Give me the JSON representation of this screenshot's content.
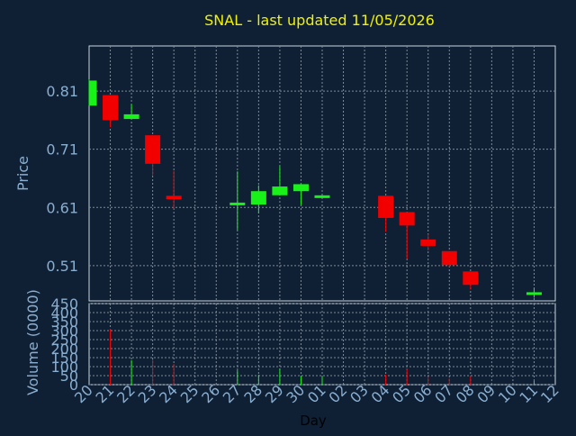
{
  "title": "SNAL - last updated 11/05/2026",
  "colors": {
    "background": "#0f2035",
    "frame": "#c8d4e0",
    "grid": "#7d8a98",
    "axis_text": "#8aaed0",
    "title": "#f2f200",
    "up": "#19f219",
    "down": "#f20000"
  },
  "chart_data": [
    {
      "type": "candlestick",
      "ylabel": "Price",
      "ylim": [
        0.4495,
        0.8875
      ],
      "yticks": [
        "0.51",
        "0.61",
        "0.71",
        "0.81"
      ],
      "grid": true,
      "candles": [
        {
          "x": "20",
          "open": 0.785,
          "high": 0.83,
          "low": 0.785,
          "close": 0.828
        },
        {
          "x": "21",
          "open": 0.803,
          "high": 0.803,
          "low": 0.748,
          "close": 0.76
        },
        {
          "x": "22",
          "open": 0.762,
          "high": 0.787,
          "low": 0.762,
          "close": 0.77
        },
        {
          "x": "23",
          "open": 0.734,
          "high": 0.734,
          "low": 0.665,
          "close": 0.685
        },
        {
          "x": "24",
          "open": 0.63,
          "high": 0.673,
          "low": 0.608,
          "close": 0.624
        },
        {
          "x": "27",
          "open": 0.614,
          "high": 0.672,
          "low": 0.571,
          "close": 0.618
        },
        {
          "x": "28",
          "open": 0.615,
          "high": 0.648,
          "low": 0.6,
          "close": 0.638
        },
        {
          "x": "29",
          "open": 0.631,
          "high": 0.681,
          "low": 0.631,
          "close": 0.646
        },
        {
          "x": "30",
          "open": 0.638,
          "high": 0.65,
          "low": 0.615,
          "close": 0.65
        },
        {
          "x": "01",
          "open": 0.627,
          "high": 0.63,
          "low": 0.627,
          "close": 0.63
        },
        {
          "x": "04",
          "open": 0.63,
          "high": 0.63,
          "low": 0.568,
          "close": 0.592
        },
        {
          "x": "05",
          "open": 0.602,
          "high": 0.602,
          "low": 0.522,
          "close": 0.579
        },
        {
          "x": "06",
          "open": 0.555,
          "high": 0.564,
          "low": 0.536,
          "close": 0.544
        },
        {
          "x": "07",
          "open": 0.535,
          "high": 0.535,
          "low": 0.508,
          "close": 0.511
        },
        {
          "x": "08",
          "open": 0.5,
          "high": 0.5,
          "low": 0.469,
          "close": 0.477
        },
        {
          "x": "11",
          "open": 0.461,
          "high": 0.471,
          "low": 0.455,
          "close": 0.463
        }
      ]
    },
    {
      "type": "bar",
      "ylabel": "Volume (0000)",
      "ylim": [
        0,
        450
      ],
      "yticks": [
        "0",
        "50",
        "100",
        "150",
        "200",
        "250",
        "300",
        "350",
        "400",
        "450"
      ],
      "grid": true,
      "bars": [
        {
          "x": "21",
          "value": 310,
          "direction": "down"
        },
        {
          "x": "22",
          "value": 135,
          "direction": "up"
        },
        {
          "x": "23",
          "value": 140,
          "direction": "down"
        },
        {
          "x": "24",
          "value": 115,
          "direction": "down"
        },
        {
          "x": "27",
          "value": 80,
          "direction": "up"
        },
        {
          "x": "28",
          "value": 55,
          "direction": "up"
        },
        {
          "x": "29",
          "value": 90,
          "direction": "up"
        },
        {
          "x": "30",
          "value": 50,
          "direction": "up"
        },
        {
          "x": "01",
          "value": 45,
          "direction": "up"
        },
        {
          "x": "04",
          "value": 55,
          "direction": "down"
        },
        {
          "x": "05",
          "value": 90,
          "direction": "down"
        },
        {
          "x": "06",
          "value": 45,
          "direction": "down"
        },
        {
          "x": "07",
          "value": 35,
          "direction": "down"
        },
        {
          "x": "08",
          "value": 50,
          "direction": "down"
        },
        {
          "x": "11",
          "value": 20,
          "direction": "up"
        }
      ]
    }
  ],
  "x_axis": {
    "label": "Day",
    "ticks": [
      "20",
      "21",
      "22",
      "23",
      "24",
      "25",
      "26",
      "27",
      "28",
      "29",
      "30",
      "01",
      "02",
      "03",
      "04",
      "05",
      "06",
      "07",
      "08",
      "09",
      "10",
      "11",
      "12"
    ]
  }
}
